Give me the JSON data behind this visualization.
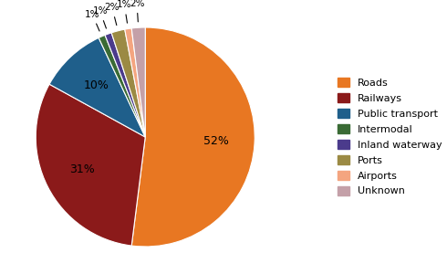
{
  "labels": [
    "Roads",
    "Railways",
    "Public transport",
    "Intermodal",
    "Inland waterway",
    "Ports",
    "Airports",
    "Unknown"
  ],
  "values": [
    52,
    31,
    10,
    1,
    1,
    2,
    1,
    2
  ],
  "colors": [
    "#E87722",
    "#8B1A1A",
    "#1F5F8B",
    "#3A6B35",
    "#4B3B8C",
    "#9B8A44",
    "#F4A580",
    "#C4A0A8"
  ],
  "pct_labels": [
    "52%",
    "31%",
    "10%",
    "1%",
    "1%",
    "2%",
    "1%",
    "2%"
  ],
  "startangle": 90,
  "figsize": [
    4.9,
    3.0
  ],
  "dpi": 100
}
